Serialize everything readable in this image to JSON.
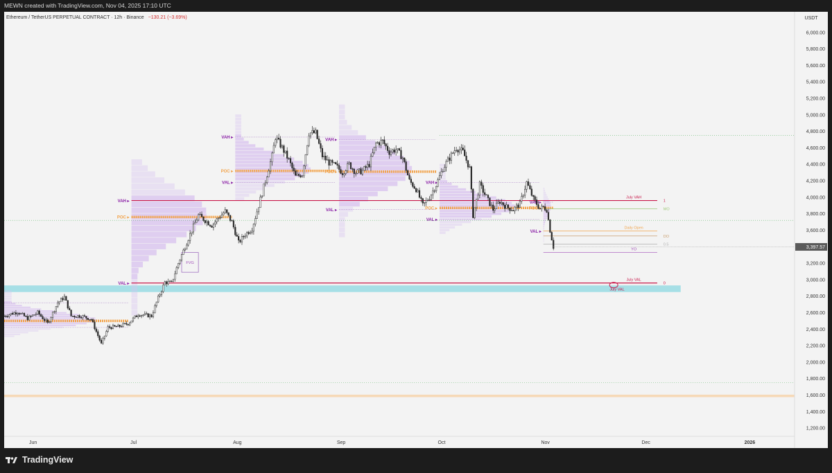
{
  "header": {
    "created": "MEWN created with TradingView.com, Nov 04, 2025 17:10 UTC"
  },
  "symbol": {
    "title": "Ethereum / TetherUS PERPETUAL CONTRACT · 12h · Binance",
    "change": "−130.21 (−3.69%)"
  },
  "axis": {
    "currency": "USDT",
    "last_price": "3,397.57"
  },
  "footer": {
    "brand": "TradingView"
  },
  "colors": {
    "panel": "#f3f3f3",
    "candle": "#2b2b2b",
    "poc": "#f2a34a",
    "profile": "#d8c2ef",
    "val_vah_text": "#8a1fa6",
    "level_line": "#c9184a",
    "cyan_zone": "#a6dfe6",
    "orange_zone": "#f6d9b7"
  },
  "chart_data": {
    "type": "candlestick",
    "symbol": "Ethereum / TetherUS PERPETUAL CONTRACT",
    "interval": "12h",
    "exchange": "Binance",
    "last_price": 3397.57,
    "change": "−130.21 (−3.69%)",
    "y_axis": {
      "unit": "USDT",
      "range": [
        1100,
        6250
      ],
      "ticks": [
        1200,
        1400,
        1600,
        1800,
        2000,
        2200,
        2400,
        2600,
        2800,
        3000,
        3200,
        3400,
        3600,
        3800,
        4000,
        4200,
        4400,
        4600,
        4800,
        5000,
        5200,
        5400,
        5600,
        5800,
        6000,
        6200
      ],
      "tick_labels": [
        "1,200.00",
        "1,400.00",
        "1,600.00",
        "1,800.00",
        "2,000.00",
        "2,200.00",
        "2,400.00",
        "2,600.00",
        "2,800.00",
        "3,000.00",
        "3,200.00",
        "3,400.00",
        "3,600.00",
        "3,800.00",
        "4,000.00",
        "4,200.00",
        "4,400.00",
        "4,600.00",
        "4,800.00",
        "5,000.00",
        "5,200.00",
        "5,400.00",
        "5,600.00",
        "5,800.00",
        "6,000.00",
        "6,200.00"
      ]
    },
    "x_axis": {
      "ticks": [
        "2025-06-01",
        "2025-07-01",
        "2025-08-01",
        "2025-09-01",
        "2025-10-01",
        "2025-11-01",
        "2025-12-01",
        "2026-01-01"
      ],
      "tick_labels": [
        "Jun",
        "Jul",
        "Aug",
        "Sep",
        "Oct",
        "Nov",
        "Dec",
        "2026"
      ],
      "range": [
        "2025-05-24",
        "2026-01-15"
      ]
    },
    "price_path": [
      [
        "2025-05-24",
        2560
      ],
      [
        "2025-05-28",
        2610
      ],
      [
        "2025-05-31",
        2530
      ],
      [
        "2025-06-03",
        2600
      ],
      [
        "2025-06-06",
        2470
      ],
      [
        "2025-06-09",
        2720
      ],
      [
        "2025-06-11",
        2790
      ],
      [
        "2025-06-13",
        2560
      ],
      [
        "2025-06-16",
        2560
      ],
      [
        "2025-06-19",
        2520
      ],
      [
        "2025-06-22",
        2220
      ],
      [
        "2025-06-24",
        2420
      ],
      [
        "2025-06-27",
        2430
      ],
      [
        "2025-06-30",
        2470
      ],
      [
        "2025-07-03",
        2580
      ],
      [
        "2025-07-07",
        2560
      ],
      [
        "2025-07-09",
        2780
      ],
      [
        "2025-07-11",
        2970
      ],
      [
        "2025-07-13",
        2960
      ],
      [
        "2025-07-15",
        3200
      ],
      [
        "2025-07-17",
        3400
      ],
      [
        "2025-07-19",
        3600
      ],
      [
        "2025-07-21",
        3780
      ],
      [
        "2025-07-23",
        3720
      ],
      [
        "2025-07-25",
        3660
      ],
      [
        "2025-07-27",
        3750
      ],
      [
        "2025-07-29",
        3830
      ],
      [
        "2025-07-31",
        3700
      ],
      [
        "2025-08-02",
        3450
      ],
      [
        "2025-08-04",
        3550
      ],
      [
        "2025-08-06",
        3620
      ],
      [
        "2025-08-08",
        3900
      ],
      [
        "2025-08-10",
        4200
      ],
      [
        "2025-08-12",
        4500
      ],
      [
        "2025-08-13",
        4730
      ],
      [
        "2025-08-15",
        4600
      ],
      [
        "2025-08-17",
        4450
      ],
      [
        "2025-08-19",
        4250
      ],
      [
        "2025-08-21",
        4280
      ],
      [
        "2025-08-23",
        4780
      ],
      [
        "2025-08-25",
        4780
      ],
      [
        "2025-08-27",
        4500
      ],
      [
        "2025-08-29",
        4420
      ],
      [
        "2025-08-31",
        4380
      ],
      [
        "2025-09-02",
        4300
      ],
      [
        "2025-09-04",
        4400
      ],
      [
        "2025-09-06",
        4300
      ],
      [
        "2025-09-08",
        4320
      ],
      [
        "2025-09-10",
        4400
      ],
      [
        "2025-09-12",
        4650
      ],
      [
        "2025-09-14",
        4680
      ],
      [
        "2025-09-16",
        4550
      ],
      [
        "2025-09-18",
        4580
      ],
      [
        "2025-09-20",
        4480
      ],
      [
        "2025-09-22",
        4200
      ],
      [
        "2025-09-24",
        4100
      ],
      [
        "2025-09-26",
        3900
      ],
      [
        "2025-09-28",
        4000
      ],
      [
        "2025-09-30",
        4150
      ],
      [
        "2025-10-02",
        4350
      ],
      [
        "2025-10-04",
        4480
      ],
      [
        "2025-10-06",
        4600
      ],
      [
        "2025-10-08",
        4550
      ],
      [
        "2025-10-10",
        4350
      ],
      [
        "2025-10-11",
        3780
      ],
      [
        "2025-10-13",
        4150
      ],
      [
        "2025-10-15",
        4000
      ],
      [
        "2025-10-17",
        3850
      ],
      [
        "2025-10-19",
        3950
      ],
      [
        "2025-10-21",
        3880
      ],
      [
        "2025-10-23",
        3850
      ],
      [
        "2025-10-25",
        3920
      ],
      [
        "2025-10-27",
        4180
      ],
      [
        "2025-10-29",
        3980
      ],
      [
        "2025-10-31",
        3860
      ],
      [
        "2025-11-01",
        3880
      ],
      [
        "2025-11-02",
        3850
      ],
      [
        "2025-11-03",
        3600
      ],
      [
        "2025-11-04",
        3397.57
      ]
    ],
    "level_lines": [
      {
        "label": "July VAH",
        "value": 3960,
        "marker": "1"
      },
      {
        "label": "July VAL",
        "value": 2960,
        "marker": "0"
      },
      {
        "label": "",
        "value": 3430,
        "marker": "0.5"
      },
      {
        "label": "Daily Open",
        "value": 3590
      },
      {
        "label": "",
        "value": 3530,
        "marker": "DO"
      },
      {
        "label": "",
        "value": 3860,
        "marker": "MO"
      },
      {
        "label": "YO",
        "value": 3330
      }
    ],
    "zones": [
      {
        "from": 2850,
        "to": 2930
      },
      {
        "from": 1575,
        "to": 1605
      }
    ],
    "volume_profiles": [
      {
        "range": [
          "2025-05-24",
          "2025-06-30"
        ],
        "VAH": 2720,
        "POC": 2500,
        "VAL": 2420
      },
      {
        "range": [
          "2025-07-01",
          "2025-07-31"
        ],
        "VAH": 3960,
        "POC": 3760,
        "VAL": 2960
      },
      {
        "range": [
          "2025-08-01",
          "2025-08-31"
        ],
        "VAH": 4730,
        "POC": 4320,
        "VAL": 4180
      },
      {
        "range": [
          "2025-09-01",
          "2025-09-30"
        ],
        "VAH": 4700,
        "POC": 4310,
        "VAL": 3850
      },
      {
        "range": [
          "2025-10-01",
          "2025-10-31"
        ],
        "VAH": 4180,
        "POC": 3870,
        "VAL": 3730
      },
      {
        "range": [
          "2025-11-01",
          "2025-11-04"
        ],
        "VAH": 3940,
        "POC": 3870,
        "VAL": 3590
      }
    ],
    "annotations": [
      "FVG"
    ]
  }
}
